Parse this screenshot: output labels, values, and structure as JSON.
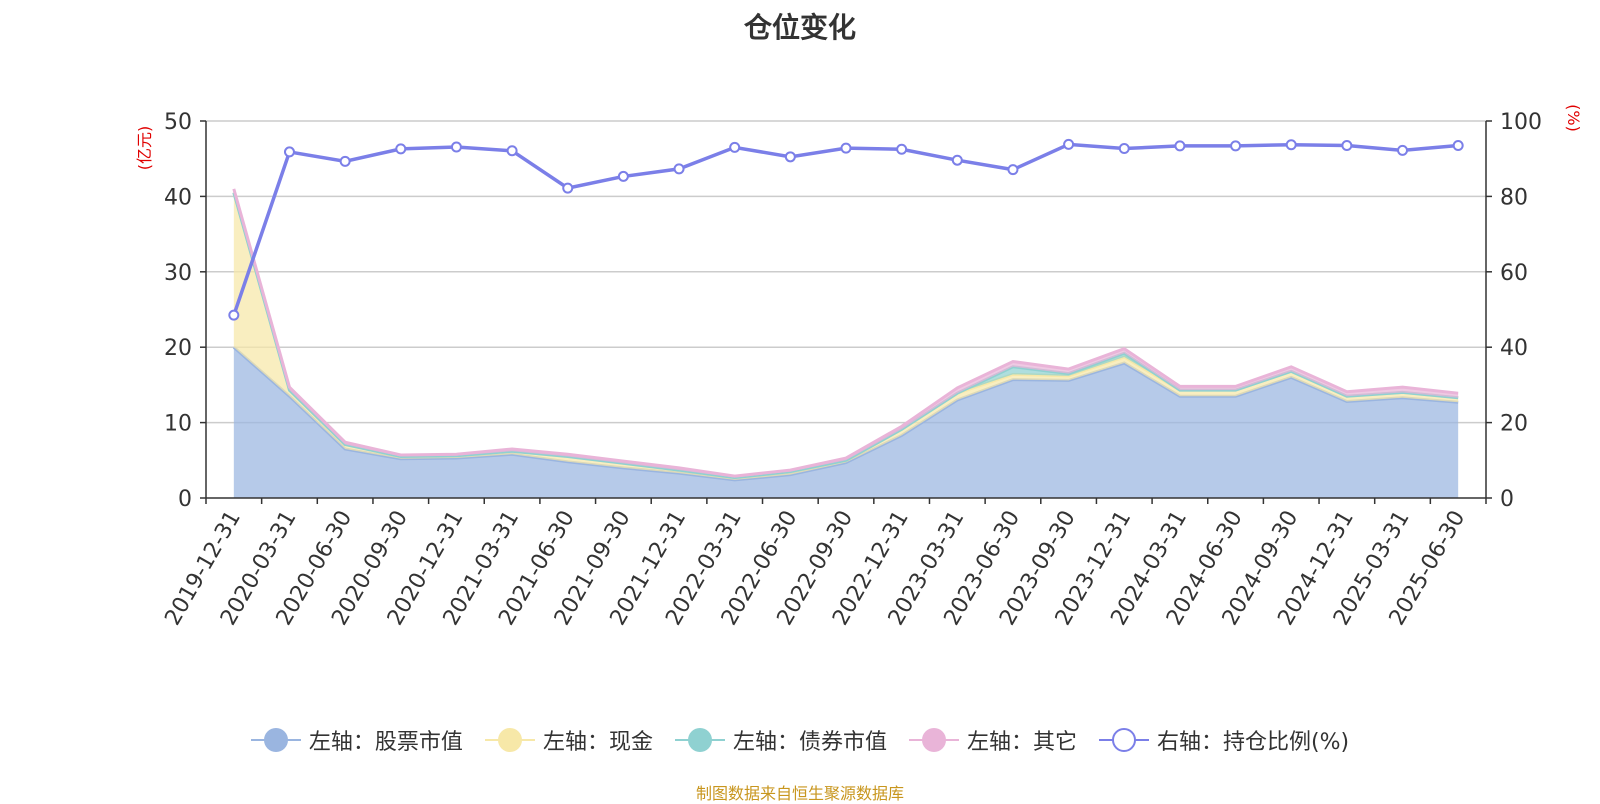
{
  "chart_data": {
    "type": "area",
    "title": "仓位变化",
    "left_axis": {
      "name": "(亿元)",
      "min": 0,
      "max": 50,
      "ticks": [
        0,
        10,
        20,
        30,
        40,
        50
      ]
    },
    "right_axis": {
      "name": "(%)",
      "min": 0,
      "max": 100,
      "ticks": [
        0,
        20,
        40,
        60,
        80,
        100
      ]
    },
    "categories": [
      "2019-12-31",
      "2020-03-31",
      "2020-06-30",
      "2020-09-30",
      "2020-12-31",
      "2021-03-31",
      "2021-06-30",
      "2021-09-30",
      "2021-12-31",
      "2022-03-31",
      "2022-06-30",
      "2022-09-30",
      "2022-12-31",
      "2023-03-31",
      "2023-06-30",
      "2023-09-30",
      "2023-12-31",
      "2024-03-31",
      "2024-06-30",
      "2024-09-30",
      "2024-12-31",
      "2025-03-31",
      "2025-06-30"
    ],
    "series": [
      {
        "name": "左轴：股票市值",
        "axis": "left",
        "kind": "stacked-area",
        "color": "#9ab5e0",
        "values": [
          20.0,
          13.5,
          6.5,
          5.2,
          5.3,
          5.8,
          4.8,
          4.0,
          3.3,
          2.4,
          3.1,
          4.7,
          8.3,
          13.0,
          15.7,
          15.6,
          17.9,
          13.5,
          13.5,
          16.0,
          12.8,
          13.3,
          12.7
        ]
      },
      {
        "name": "左轴：现金",
        "axis": "left",
        "kind": "stacked-area",
        "color": "#f7e8a8",
        "values": [
          20.5,
          0.8,
          0.6,
          0.3,
          0.3,
          0.4,
          0.7,
          0.6,
          0.4,
          0.3,
          0.4,
          0.3,
          0.8,
          0.9,
          0.7,
          0.6,
          0.8,
          0.8,
          0.8,
          0.8,
          0.7,
          0.7,
          0.6
        ]
      },
      {
        "name": "左轴：债券市值",
        "axis": "left",
        "kind": "stacked-area",
        "color": "#8fd1d1",
        "values": [
          0.0,
          0.0,
          0.0,
          0.0,
          0.0,
          0.0,
          0.0,
          0.0,
          0.0,
          0.0,
          0.0,
          0.0,
          0.0,
          0.0,
          1.0,
          0.3,
          0.5,
          0.0,
          0.0,
          0.0,
          0.0,
          0.0,
          0.0
        ]
      },
      {
        "name": "左轴：其它",
        "axis": "left",
        "kind": "stacked-area",
        "color": "#e9b4d8",
        "values": [
          0.5,
          0.4,
          0.3,
          0.2,
          0.2,
          0.3,
          0.3,
          0.3,
          0.3,
          0.2,
          0.2,
          0.3,
          0.4,
          0.7,
          0.7,
          0.6,
          0.6,
          0.5,
          0.5,
          0.6,
          0.6,
          0.7,
          0.6
        ]
      },
      {
        "name": "右轴：持仓比例(%)",
        "axis": "right",
        "kind": "line",
        "color": "#7b7fe8",
        "values": [
          48.5,
          91.8,
          89.3,
          92.6,
          93.1,
          92.1,
          82.2,
          85.3,
          87.3,
          93.0,
          90.5,
          92.8,
          92.5,
          89.6,
          87.1,
          93.8,
          92.7,
          93.4,
          93.4,
          93.7,
          93.5,
          92.2,
          93.5
        ]
      }
    ],
    "grid": true,
    "legend_position": "bottom",
    "source_note": "制图数据来自恒生聚源数据库"
  }
}
